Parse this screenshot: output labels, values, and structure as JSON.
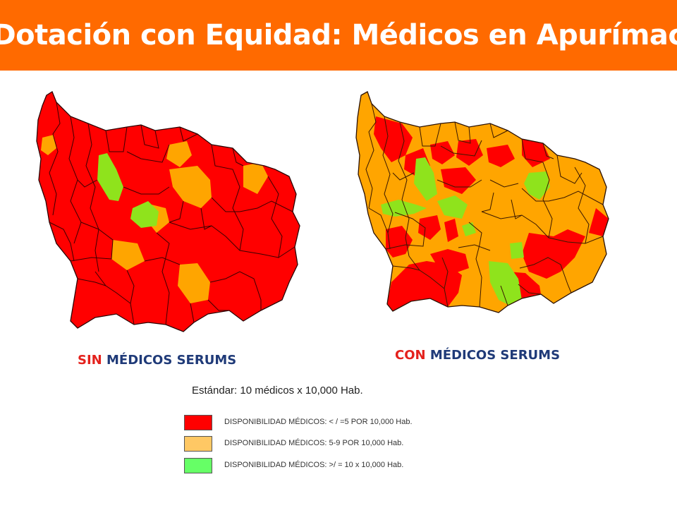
{
  "title": "Dotación con Equidad: Médicos en Apurímac",
  "colors": {
    "title_bar": "#ff6a00",
    "low": "#ff0000",
    "mid": "#ffa500",
    "high": "#8fe31c",
    "label_highlight": "#e4211c",
    "label_text": "#1f3a78"
  },
  "maps": {
    "left": {
      "label_highlight": "SIN",
      "label_rest": " MÉDICOS SERUMS"
    },
    "right": {
      "label_highlight": "CON",
      "label_rest": " MÉDICOS SERUMS"
    }
  },
  "standard": "Estándar: 10 médicos x 10,000 Hab.",
  "legend": [
    {
      "text": "DISPONIBILIDAD MÉDICOS: < / =5 POR 10,000 Hab.",
      "color": "#ff0000"
    },
    {
      "text": "DISPONIBILIDAD MÉDICOS: 5-9 POR 10,000 Hab.",
      "color": "#ffc864"
    },
    {
      "text": "DISPONIBILIDAD MÉDICOS: >/ = 10 x 10,000 Hab.",
      "color": "#66ff66"
    }
  ]
}
